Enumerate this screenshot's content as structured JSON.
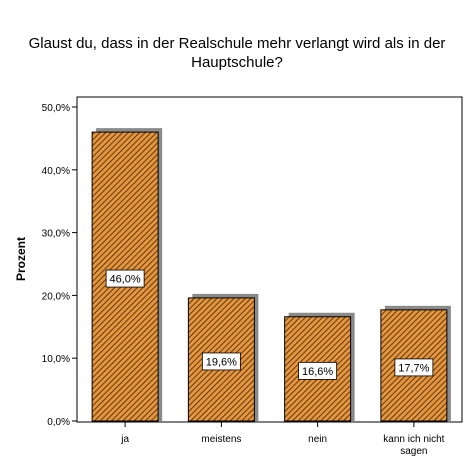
{
  "chart_data": {
    "type": "bar",
    "title_lines": [
      "Glaust du, dass in der Realschule mehr verlangt wird als in der",
      "Hauptschule?"
    ],
    "ylabel": "Prozent",
    "xlabel": "",
    "categories": [
      "ja",
      "meistens",
      "nein",
      "kann ich nicht sagen"
    ],
    "category_label_lines": [
      [
        "ja"
      ],
      [
        "meistens"
      ],
      [
        "nein"
      ],
      [
        "kann ich nicht",
        "sagen"
      ]
    ],
    "values": [
      46.0,
      19.6,
      16.6,
      17.7
    ],
    "data_labels": [
      "46,0%",
      "19,6%",
      "16,6%",
      "17,7%"
    ],
    "ylim": [
      0,
      50
    ],
    "yticks": [
      0,
      10,
      20,
      30,
      40,
      50
    ],
    "ytick_labels": [
      "0,0%",
      "10,0%",
      "20,0%",
      "30,0%",
      "40,0%",
      "50,0%"
    ],
    "grid": false,
    "legend": "none",
    "colors": {
      "bar_fill": "#e6953a",
      "hatch": "#3a2410",
      "bar_outline": "#000000",
      "bar_shadow": "#8a8a8a",
      "axis": "#000000",
      "text": "#000000"
    }
  }
}
